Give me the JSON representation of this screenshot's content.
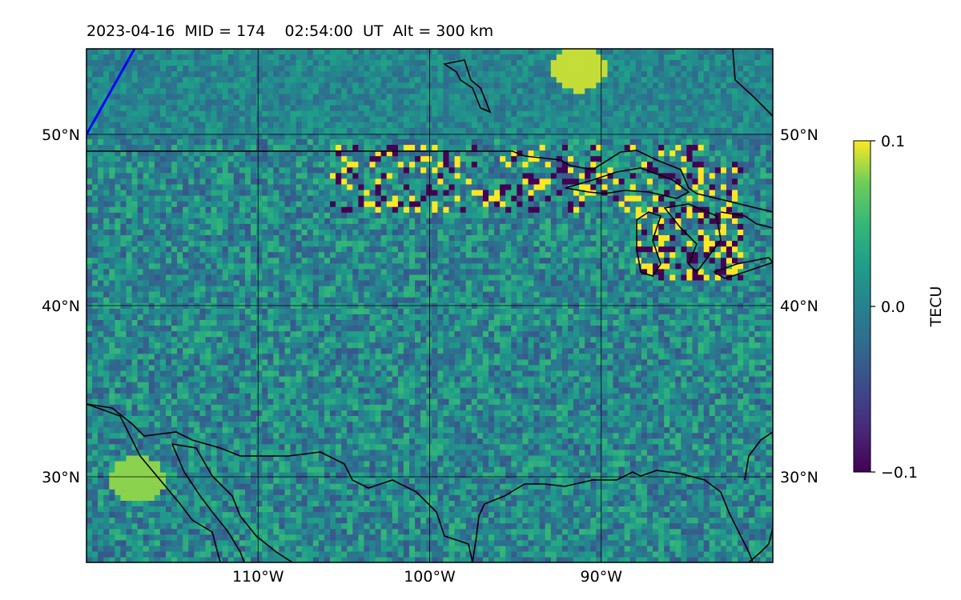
{
  "chart_data": {
    "type": "heatmap",
    "title": "2023-04-16  MID = 174    02:54:00  UT  Alt = 300 km",
    "x_range": [
      -120,
      -80
    ],
    "y_range": [
      25,
      55
    ],
    "x_ticks": [
      {
        "value": -110,
        "label": "110°W"
      },
      {
        "value": -100,
        "label": "100°W"
      },
      {
        "value": -90,
        "label": "90°W"
      }
    ],
    "y_ticks_left": [
      {
        "value": 50,
        "label": "50°N"
      },
      {
        "value": 40,
        "label": "40°N"
      },
      {
        "value": 30,
        "label": "30°N"
      }
    ],
    "y_ticks_right": [
      {
        "value": 50,
        "label": "50°N"
      },
      {
        "value": 40,
        "label": "40°N"
      },
      {
        "value": 30,
        "label": "30°N"
      }
    ],
    "grid": true,
    "colormap": "viridis",
    "colorbar": {
      "label": "TECU",
      "range": [
        -0.1,
        0.1
      ],
      "ticks": [
        {
          "value": 0.1,
          "label": "0.1"
        },
        {
          "value": 0.0,
          "label": "0.0"
        },
        {
          "value": -0.1,
          "label": "−0.1"
        }
      ]
    },
    "features": {
      "us_canada_border_latitude": 49,
      "blue_line": [
        [
          -120,
          50
        ],
        [
          -117.2,
          55
        ]
      ],
      "bright_patches": [
        {
          "lon": -91.5,
          "lat": 54,
          "value": 0.09
        },
        {
          "lon": -117.2,
          "lat": 30,
          "value": 0.08
        }
      ],
      "note_region": "strong positive/negative TEC perturbations along 46-49N and around the Great Lakes"
    }
  },
  "colors": {
    "viridis_low": "#440154",
    "viridis_mid": "#21918c",
    "viridis_high": "#fde725",
    "coastline": "#000000",
    "blue_line": "#0000ff"
  }
}
